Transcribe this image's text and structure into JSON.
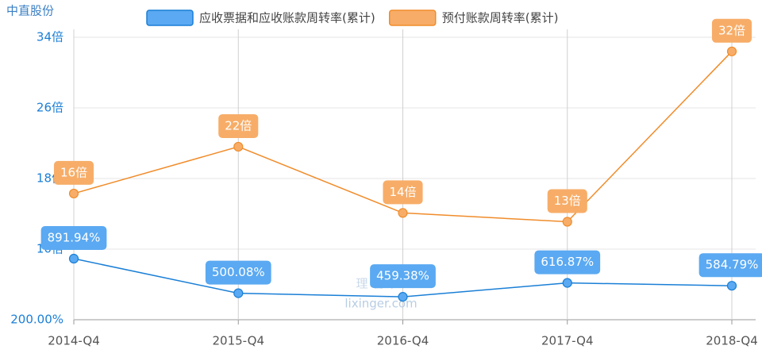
{
  "chart_data": {
    "type": "line",
    "title": "中直股份",
    "watermark": [
      "理杏仁",
      "lixinger.com"
    ],
    "categories": [
      "2014-Q4",
      "2015-Q4",
      "2016-Q4",
      "2017-Q4",
      "2018-Q4"
    ],
    "series": [
      {
        "name": "应收票据和应收账款周转率(累计)",
        "color": "#1a7fd6",
        "fill": "#5aa9f2",
        "values": [
          8.9194,
          5.0008,
          4.5938,
          6.1687,
          5.8479
        ],
        "value_labels": [
          "891.94%",
          "500.08%",
          "459.38%",
          "616.87%",
          "584.79%"
        ]
      },
      {
        "name": "预付账款周转率(累计)",
        "color": "#f08c2a",
        "fill": "#f7ad68",
        "values": [
          16.3,
          21.6,
          14.1,
          13.1,
          32.4
        ],
        "value_labels": [
          "16倍",
          "22倍",
          "14倍",
          "13倍",
          "32倍"
        ]
      }
    ],
    "ylim": [
      2,
      34
    ],
    "yticks": [
      {
        "value": 2,
        "label": "200.00%"
      },
      {
        "value": 10,
        "label": "10倍"
      },
      {
        "value": 18,
        "label": "18倍"
      },
      {
        "value": 26,
        "label": "26倍"
      },
      {
        "value": 34,
        "label": "34倍"
      }
    ],
    "grid": true
  }
}
